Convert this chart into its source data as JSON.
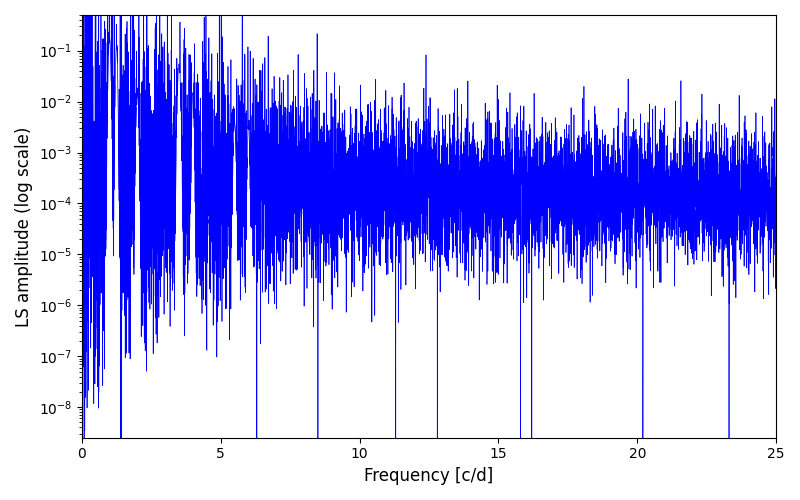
{
  "title": "",
  "xlabel": "Frequency [c/d]",
  "ylabel": "LS amplitude (log scale)",
  "line_color": "#0000ff",
  "xlim": [
    0,
    25
  ],
  "ylim_log": [
    -8.6,
    -0.3
  ],
  "xfreq_max": 25.0,
  "n_points": 8000,
  "seed": 7,
  "background_color": "#ffffff",
  "figsize": [
    8.0,
    5.0
  ],
  "dpi": 100
}
